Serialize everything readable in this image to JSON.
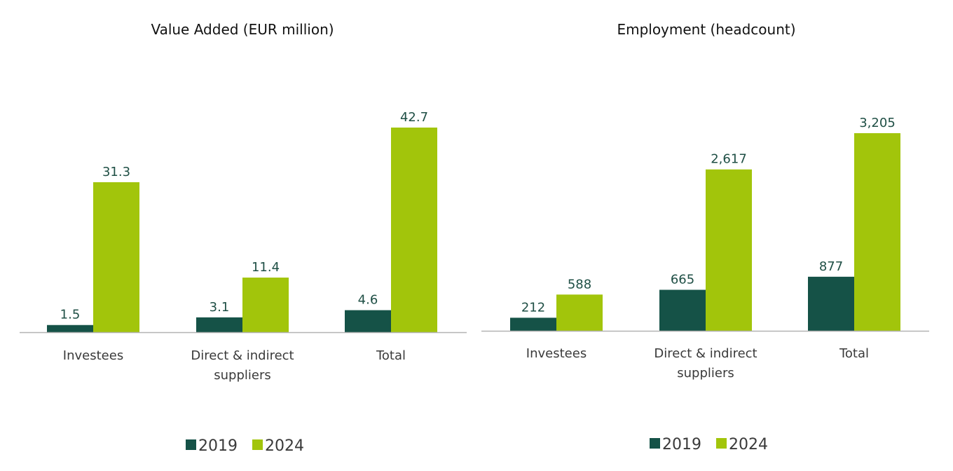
{
  "colors": {
    "series_2019": "#155247",
    "series_2024": "#a2c50b",
    "axis": "#b3b3b3",
    "value_text": "#1f4f45"
  },
  "chart_data": [
    {
      "type": "bar",
      "title": "Value Added (EUR million)",
      "categories": [
        [
          "Investees"
        ],
        [
          "Direct & indirect",
          "suppliers"
        ],
        [
          "Total"
        ]
      ],
      "series": [
        {
          "name": "2019",
          "values": [
            1.5,
            3.1,
            4.6
          ],
          "labels": [
            "1.5",
            "3.1",
            "4.6"
          ]
        },
        {
          "name": "2024",
          "values": [
            31.3,
            11.4,
            42.7
          ],
          "labels": [
            "31.3",
            "11.4",
            "42.7"
          ]
        }
      ],
      "ylim": [
        0,
        42.7
      ],
      "grid": false,
      "legend": "bottom"
    },
    {
      "type": "bar",
      "title": "Employment (headcount)",
      "categories": [
        [
          "Investees"
        ],
        [
          "Direct & indirect",
          "suppliers"
        ],
        [
          "Total"
        ]
      ],
      "series": [
        {
          "name": "2019",
          "values": [
            212,
            665,
            877
          ],
          "labels": [
            "212",
            "665",
            "877"
          ]
        },
        {
          "name": "2024",
          "values": [
            588,
            2617,
            3205
          ],
          "labels": [
            "588",
            "2,617",
            "3,205"
          ]
        }
      ],
      "ylim": [
        0,
        3205
      ],
      "grid": false,
      "legend": "bottom"
    }
  ]
}
